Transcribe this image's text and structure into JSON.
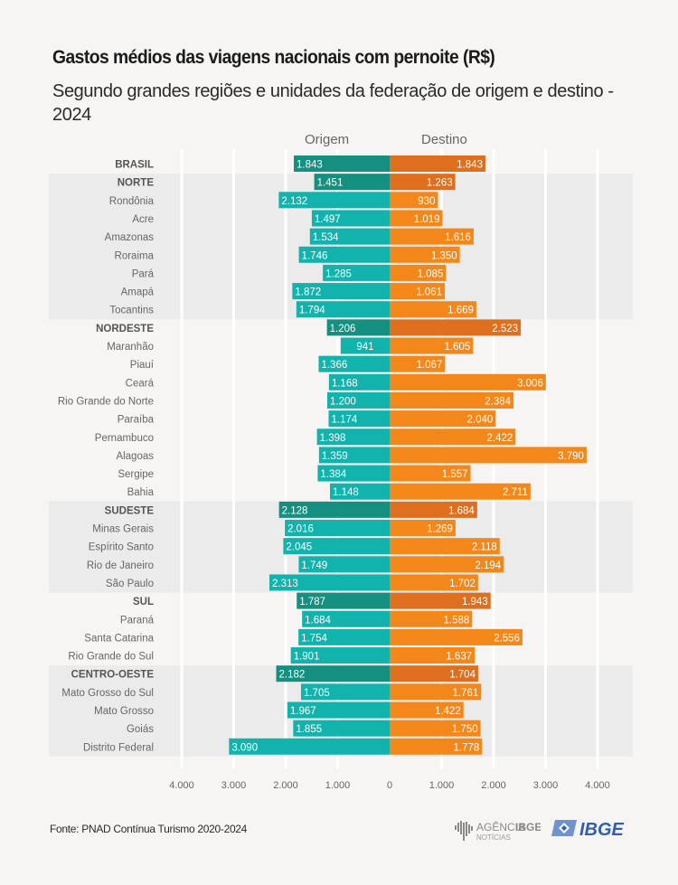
{
  "chart_data": {
    "type": "bar",
    "orientation": "horizontal-diverging",
    "title": "Gastos médios das viagens nacionais com pernoite (R$)",
    "subtitle": "Segundo grandes regiões e unidades da federação de origem e destino - 2024",
    "xlabel": "",
    "ylabel": "",
    "xlim": [
      -4000,
      4000
    ],
    "x_ticks": [
      -4000,
      -3000,
      -2000,
      -1000,
      0,
      1000,
      2000,
      3000,
      4000
    ],
    "x_tick_labels": [
      "4.000",
      "3.000",
      "2.000",
      "1.000",
      "0",
      "1.000",
      "2.000",
      "3.000",
      "4.000"
    ],
    "grid": true,
    "legend": [
      "Origem",
      "Destino"
    ],
    "legend_placement": "top-center",
    "colors": {
      "origem": "#13b3ad",
      "origem_region": "#148f80",
      "destino": "#f4871a",
      "destino_region": "#dd6f1e",
      "band": "#ebebeb"
    },
    "categories": [
      "BRASIL",
      "NORTE",
      "Rondônia",
      "Acre",
      "Amazonas",
      "Roraima",
      "Pará",
      "Amapá",
      "Tocantins",
      "NORDESTE",
      "Maranhão",
      "Piauí",
      "Ceará",
      "Rio Grande do Norte",
      "Paraíba",
      "Pernambuco",
      "Alagoas",
      "Sergipe",
      "Bahia",
      "SUDESTE",
      "Minas Gerais",
      "Espírito Santo",
      "Rio de Janeiro",
      "São Paulo",
      "SUL",
      "Paraná",
      "Santa Catarina",
      "Rio Grande do Sul",
      "CENTRO-OESTE",
      "Mato Grosso do Sul",
      "Mato Grosso",
      "Goiás",
      "Distrito Federal"
    ],
    "is_region": [
      true,
      true,
      false,
      false,
      false,
      false,
      false,
      false,
      false,
      true,
      false,
      false,
      false,
      false,
      false,
      false,
      false,
      false,
      false,
      true,
      false,
      false,
      false,
      false,
      true,
      false,
      false,
      false,
      true,
      false,
      false,
      false,
      false
    ],
    "series": [
      {
        "name": "Origem",
        "values": [
          1843,
          1451,
          2132,
          1497,
          1534,
          1746,
          1285,
          1872,
          1794,
          1206,
          941,
          1366,
          1168,
          1200,
          1174,
          1398,
          1359,
          1384,
          1148,
          2128,
          2016,
          2045,
          1749,
          2313,
          1787,
          1684,
          1754,
          1901,
          2182,
          1705,
          1967,
          1855,
          3090
        ],
        "labels": [
          "1.843",
          "1.451",
          "2.132",
          "1.497",
          "1.534",
          "1.746",
          "1.285",
          "1.872",
          "1.794",
          "1.206",
          "941",
          "1.366",
          "1.168",
          "1.200",
          "1.174",
          "1.398",
          "1.359",
          "1.384",
          "1.148",
          "2.128",
          "2.016",
          "2.045",
          "1.749",
          "2.313",
          "1.787",
          "1.684",
          "1.754",
          "1.901",
          "2.182",
          "1.705",
          "1.967",
          "1.855",
          "3.090"
        ]
      },
      {
        "name": "Destino",
        "values": [
          1843,
          1263,
          930,
          1019,
          1616,
          1350,
          1085,
          1061,
          1669,
          2523,
          1605,
          1067,
          3006,
          2384,
          2040,
          2422,
          3790,
          1557,
          2711,
          1684,
          1269,
          2118,
          2194,
          1702,
          1943,
          1588,
          2556,
          1637,
          1704,
          1761,
          1422,
          1750,
          1778
        ],
        "labels": [
          "1.843",
          "1.263",
          "930",
          "1.019",
          "1.616",
          "1.350",
          "1.085",
          "1.061",
          "1.669",
          "2.523",
          "1.605",
          "1.067",
          "3.006",
          "2.384",
          "2.040",
          "2.422",
          "3.790",
          "1.557",
          "2.711",
          "1.684",
          "1.269",
          "2.118",
          "2.194",
          "1.702",
          "1.943",
          "1.588",
          "2.556",
          "1.637",
          "1.704",
          "1.761",
          "1.422",
          "1.750",
          "1.778"
        ]
      }
    ],
    "bands": [
      [
        1,
        8
      ],
      [
        19,
        23
      ],
      [
        28,
        32
      ]
    ]
  },
  "legend": {
    "origem": "Origem",
    "destino": "Destino"
  },
  "footer": {
    "source": "Fonte: PNAD Contínua Turismo 2020-2024",
    "agencia_name": "AGÊNCIA",
    "agencia_brand": "IBGE",
    "agencia_sub": "NOTÍCIAS",
    "ibge_logo_text": "IBGE"
  }
}
